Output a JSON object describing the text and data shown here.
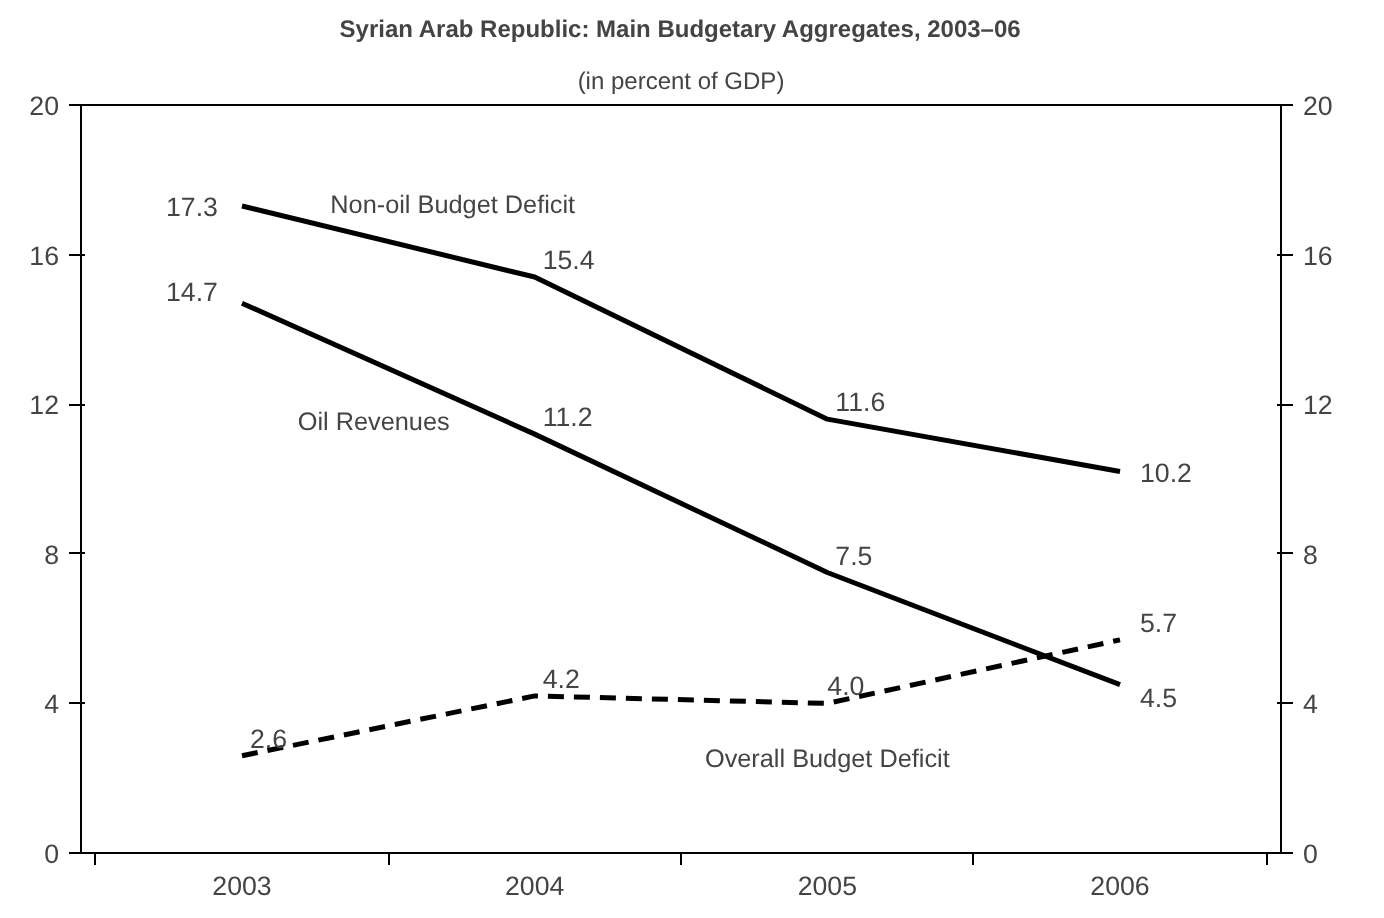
{
  "chart_data": {
    "type": "line",
    "title": "Syrian Arab Republic: Main Budgetary Aggregates, 2003–06",
    "subtitle": "(in percent of GDP)",
    "categories": [
      "2003",
      "2004",
      "2005",
      "2006"
    ],
    "series": [
      {
        "name": "Non-oil Budget Deficit",
        "color": "#000000",
        "values": [
          17.3,
          15.4,
          11.6,
          10.2
        ],
        "value_labels": [
          "17.3",
          "15.4",
          "11.6",
          "10.2"
        ]
      },
      {
        "name": "Oil Revenues",
        "color": "#000000",
        "values": [
          14.7,
          11.2,
          7.5,
          4.5
        ],
        "value_labels": [
          "14.7",
          "11.2",
          "7.5",
          "4.5"
        ]
      },
      {
        "name": "Overall Budget Deficit",
        "color": "#000000",
        "values": [
          2.6,
          4.2,
          4.0,
          5.7
        ],
        "line_style": "dashed",
        "value_labels": [
          "2.6",
          "4.2",
          "4.0",
          "5.7"
        ]
      }
    ],
    "ylim": [
      0,
      20
    ],
    "yticks": [
      0,
      4,
      8,
      12,
      16,
      20
    ],
    "y2lim": [
      0,
      20
    ],
    "y2ticks": [
      0,
      4,
      8,
      12,
      16,
      20
    ]
  }
}
